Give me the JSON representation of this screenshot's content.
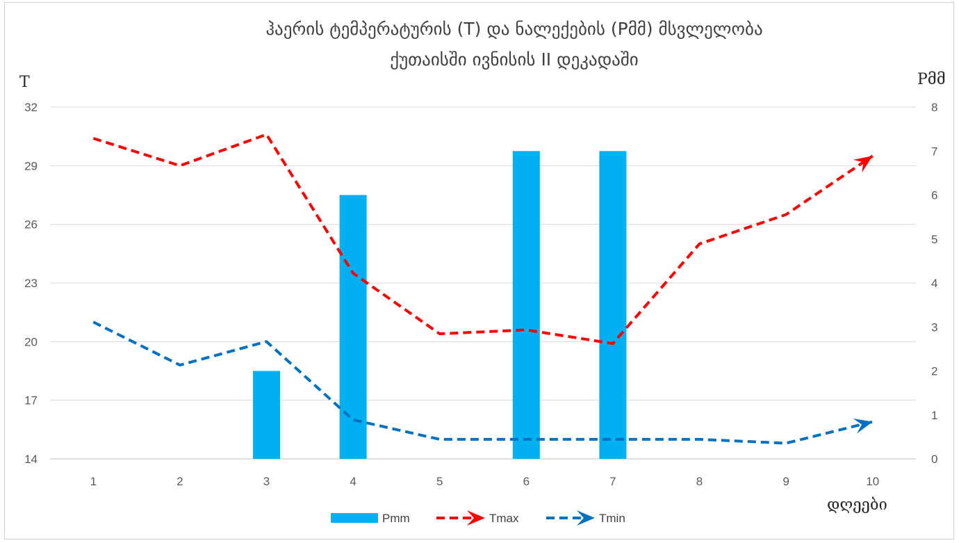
{
  "chart_data": {
    "type": "bar",
    "title": "ჰაერის ტემპერატურის (T) და ნალექების (Pმმ) მსვლელობა",
    "subtitle": "ქუთაისში  ივნისის II დეკადაში",
    "ylabel_left": "T",
    "ylabel_right": "Pმმ",
    "xlabel": "დღეები",
    "categories": [
      "1",
      "2",
      "3",
      "4",
      "5",
      "6",
      "7",
      "8",
      "9",
      "10"
    ],
    "ylim_left": [
      14,
      32
    ],
    "yticks_left": [
      "14",
      "17",
      "20",
      "23",
      "26",
      "29",
      "32"
    ],
    "ylim_right": [
      0,
      8
    ],
    "yticks_right": [
      "0",
      "1",
      "2",
      "3",
      "4",
      "5",
      "6",
      "7",
      "8"
    ],
    "grid": true,
    "legend_position": "bottom",
    "series": [
      {
        "name": "Pmm",
        "type": "bar",
        "axis": "right",
        "color": "#00B0F0",
        "values": [
          0,
          0,
          2,
          6,
          0,
          7,
          7,
          0,
          0,
          0
        ]
      },
      {
        "name": "Tmax",
        "type": "line",
        "axis": "left",
        "color": "#FF0000",
        "dash": true,
        "values": [
          30.4,
          29.0,
          30.6,
          23.5,
          20.4,
          20.6,
          19.9,
          25.0,
          26.5,
          29.5
        ]
      },
      {
        "name": "Tmin",
        "type": "line",
        "axis": "left",
        "color": "#0070C0",
        "dash": true,
        "values": [
          21.0,
          18.8,
          20.0,
          16.0,
          15.0,
          15.0,
          15.0,
          15.0,
          14.8,
          15.9
        ]
      }
    ]
  }
}
